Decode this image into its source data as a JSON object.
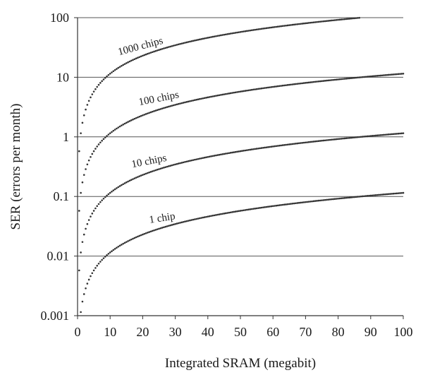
{
  "chart_data": {
    "type": "scatter",
    "title": "",
    "xlabel": "Integrated SRAM (megabit)",
    "ylabel": "SER (errors per month)",
    "xlim": [
      0,
      100
    ],
    "ylim": [
      0.001,
      100
    ],
    "yscale": "log",
    "grid": "horizontal",
    "x_ticks": [
      "0",
      "10",
      "20",
      "30",
      "40",
      "50",
      "60",
      "70",
      "80",
      "90",
      "100"
    ],
    "y_ticks": [
      "0.001",
      "0.01",
      "0.1",
      "1",
      "10",
      "100"
    ],
    "series": [
      {
        "name": "1 chip",
        "chips": 1,
        "slope": 0.00115,
        "x_max": 100
      },
      {
        "name": "10 chips",
        "chips": 10,
        "slope": 0.0115,
        "x_max": 100
      },
      {
        "name": "100 chips",
        "chips": 100,
        "slope": 0.115,
        "x_max": 100
      },
      {
        "name": "1000 chips",
        "chips": 1000,
        "slope": 1.15,
        "x_max": 87
      }
    ],
    "colors": {
      "points": "#333333",
      "grid": "#555555"
    }
  }
}
